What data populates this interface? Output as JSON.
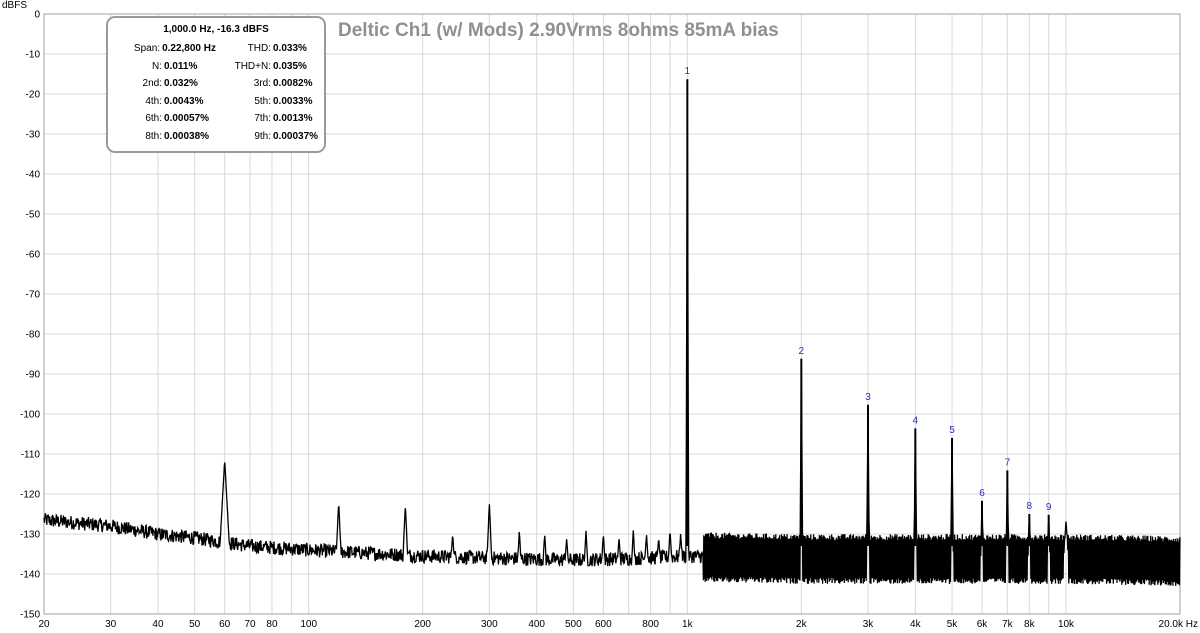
{
  "chart_data": {
    "type": "line",
    "title": "Deltic Ch1 (w/ Mods) 2.90Vrms 8ohms 85mA bias",
    "ylabel": "dBFS",
    "xunit": "Hz",
    "xscale": "log",
    "xlim": [
      20,
      20000
    ],
    "ylim": [
      -150,
      0
    ],
    "grid": true,
    "y_ticks": [
      0,
      -10,
      -20,
      -30,
      -40,
      -50,
      -60,
      -70,
      -80,
      -90,
      -100,
      -110,
      -120,
      -130,
      -140,
      -150
    ],
    "x_ticks": [
      {
        "value": 20,
        "label": "20"
      },
      {
        "value": 30,
        "label": "30"
      },
      {
        "value": 40,
        "label": "40"
      },
      {
        "value": 50,
        "label": "50"
      },
      {
        "value": 60,
        "label": "60"
      },
      {
        "value": 70,
        "label": "70"
      },
      {
        "value": 80,
        "label": "80"
      },
      {
        "value": 100,
        "label": "100"
      },
      {
        "value": 200,
        "label": "200"
      },
      {
        "value": 300,
        "label": "300"
      },
      {
        "value": 400,
        "label": "400"
      },
      {
        "value": 500,
        "label": "500"
      },
      {
        "value": 600,
        "label": "600"
      },
      {
        "value": 800,
        "label": "800"
      },
      {
        "value": 1000,
        "label": "1k"
      },
      {
        "value": 2000,
        "label": "2k"
      },
      {
        "value": 3000,
        "label": "3k"
      },
      {
        "value": 4000,
        "label": "4k"
      },
      {
        "value": 5000,
        "label": "5k"
      },
      {
        "value": 6000,
        "label": "6k"
      },
      {
        "value": 7000,
        "label": "7k"
      },
      {
        "value": 8000,
        "label": "8k"
      },
      {
        "value": 10000,
        "label": "10k"
      },
      {
        "value": 20000,
        "label": "20.0k Hz"
      }
    ],
    "harmonics": [
      {
        "label": "1",
        "freq": 1000,
        "level": -16.3
      },
      {
        "label": "2",
        "freq": 2000,
        "level": -86.2
      },
      {
        "label": "3",
        "freq": 3000,
        "level": -97.7
      },
      {
        "label": "4",
        "freq": 4000,
        "level": -103.6
      },
      {
        "label": "5",
        "freq": 5000,
        "level": -106.0
      },
      {
        "label": "6",
        "freq": 6000,
        "level": -121.7
      },
      {
        "label": "7",
        "freq": 7000,
        "level": -114.1
      },
      {
        "label": "8",
        "freq": 8000,
        "level": -125.0
      },
      {
        "label": "9",
        "freq": 9000,
        "level": -125.2
      }
    ],
    "spurs": [
      {
        "freq": 60,
        "level": -111.5
      },
      {
        "freq": 120,
        "level": -122.0
      },
      {
        "freq": 180,
        "level": -122.5
      },
      {
        "freq": 300,
        "level": -122.2
      },
      {
        "freq": 10000,
        "level": -126.5
      }
    ],
    "noise_floor": [
      {
        "freq": 20,
        "level": -126.5
      },
      {
        "freq": 30,
        "level": -128.0
      },
      {
        "freq": 40,
        "level": -130.0
      },
      {
        "freq": 50,
        "level": -131.0
      },
      {
        "freq": 70,
        "level": -133.0
      },
      {
        "freq": 100,
        "level": -134.0
      },
      {
        "freq": 200,
        "level": -135.5
      },
      {
        "freq": 300,
        "level": -136.0
      },
      {
        "freq": 500,
        "level": -136.5
      },
      {
        "freq": 800,
        "level": -136.0
      },
      {
        "freq": 1000,
        "level": -135.5
      },
      {
        "freq": 2000,
        "level": -136.0
      },
      {
        "freq": 5000,
        "level": -136.0
      },
      {
        "freq": 10000,
        "level": -136.0
      },
      {
        "freq": 20000,
        "level": -136.5
      }
    ]
  },
  "info_box": {
    "header": "1,000.0 Hz, -16.3 dBFS",
    "rows": [
      [
        {
          "label": "Span:",
          "value": "0.22,800 Hz"
        },
        {
          "label": "THD:",
          "value": "0.033%"
        }
      ],
      [
        {
          "label": "N:",
          "value": "0.011%"
        },
        {
          "label": "THD+N:",
          "value": "0.035%"
        }
      ],
      [
        {
          "label": "2nd:",
          "value": "0.032%"
        },
        {
          "label": "3rd:",
          "value": "0.0082%"
        }
      ],
      [
        {
          "label": "4th:",
          "value": "0.0043%"
        },
        {
          "label": "5th:",
          "value": "0.0033%"
        }
      ],
      [
        {
          "label": "6th:",
          "value": "0.00057%"
        },
        {
          "label": "7th:",
          "value": "0.0013%"
        }
      ],
      [
        {
          "label": "8th:",
          "value": "0.00038%"
        },
        {
          "label": "9th:",
          "value": "0.00037%"
        }
      ]
    ]
  },
  "colors": {
    "trace": "#000000",
    "grid": "#d8d8d8",
    "marker": "#2233bb",
    "title": "#909090",
    "frame": "#9a9a9a"
  }
}
